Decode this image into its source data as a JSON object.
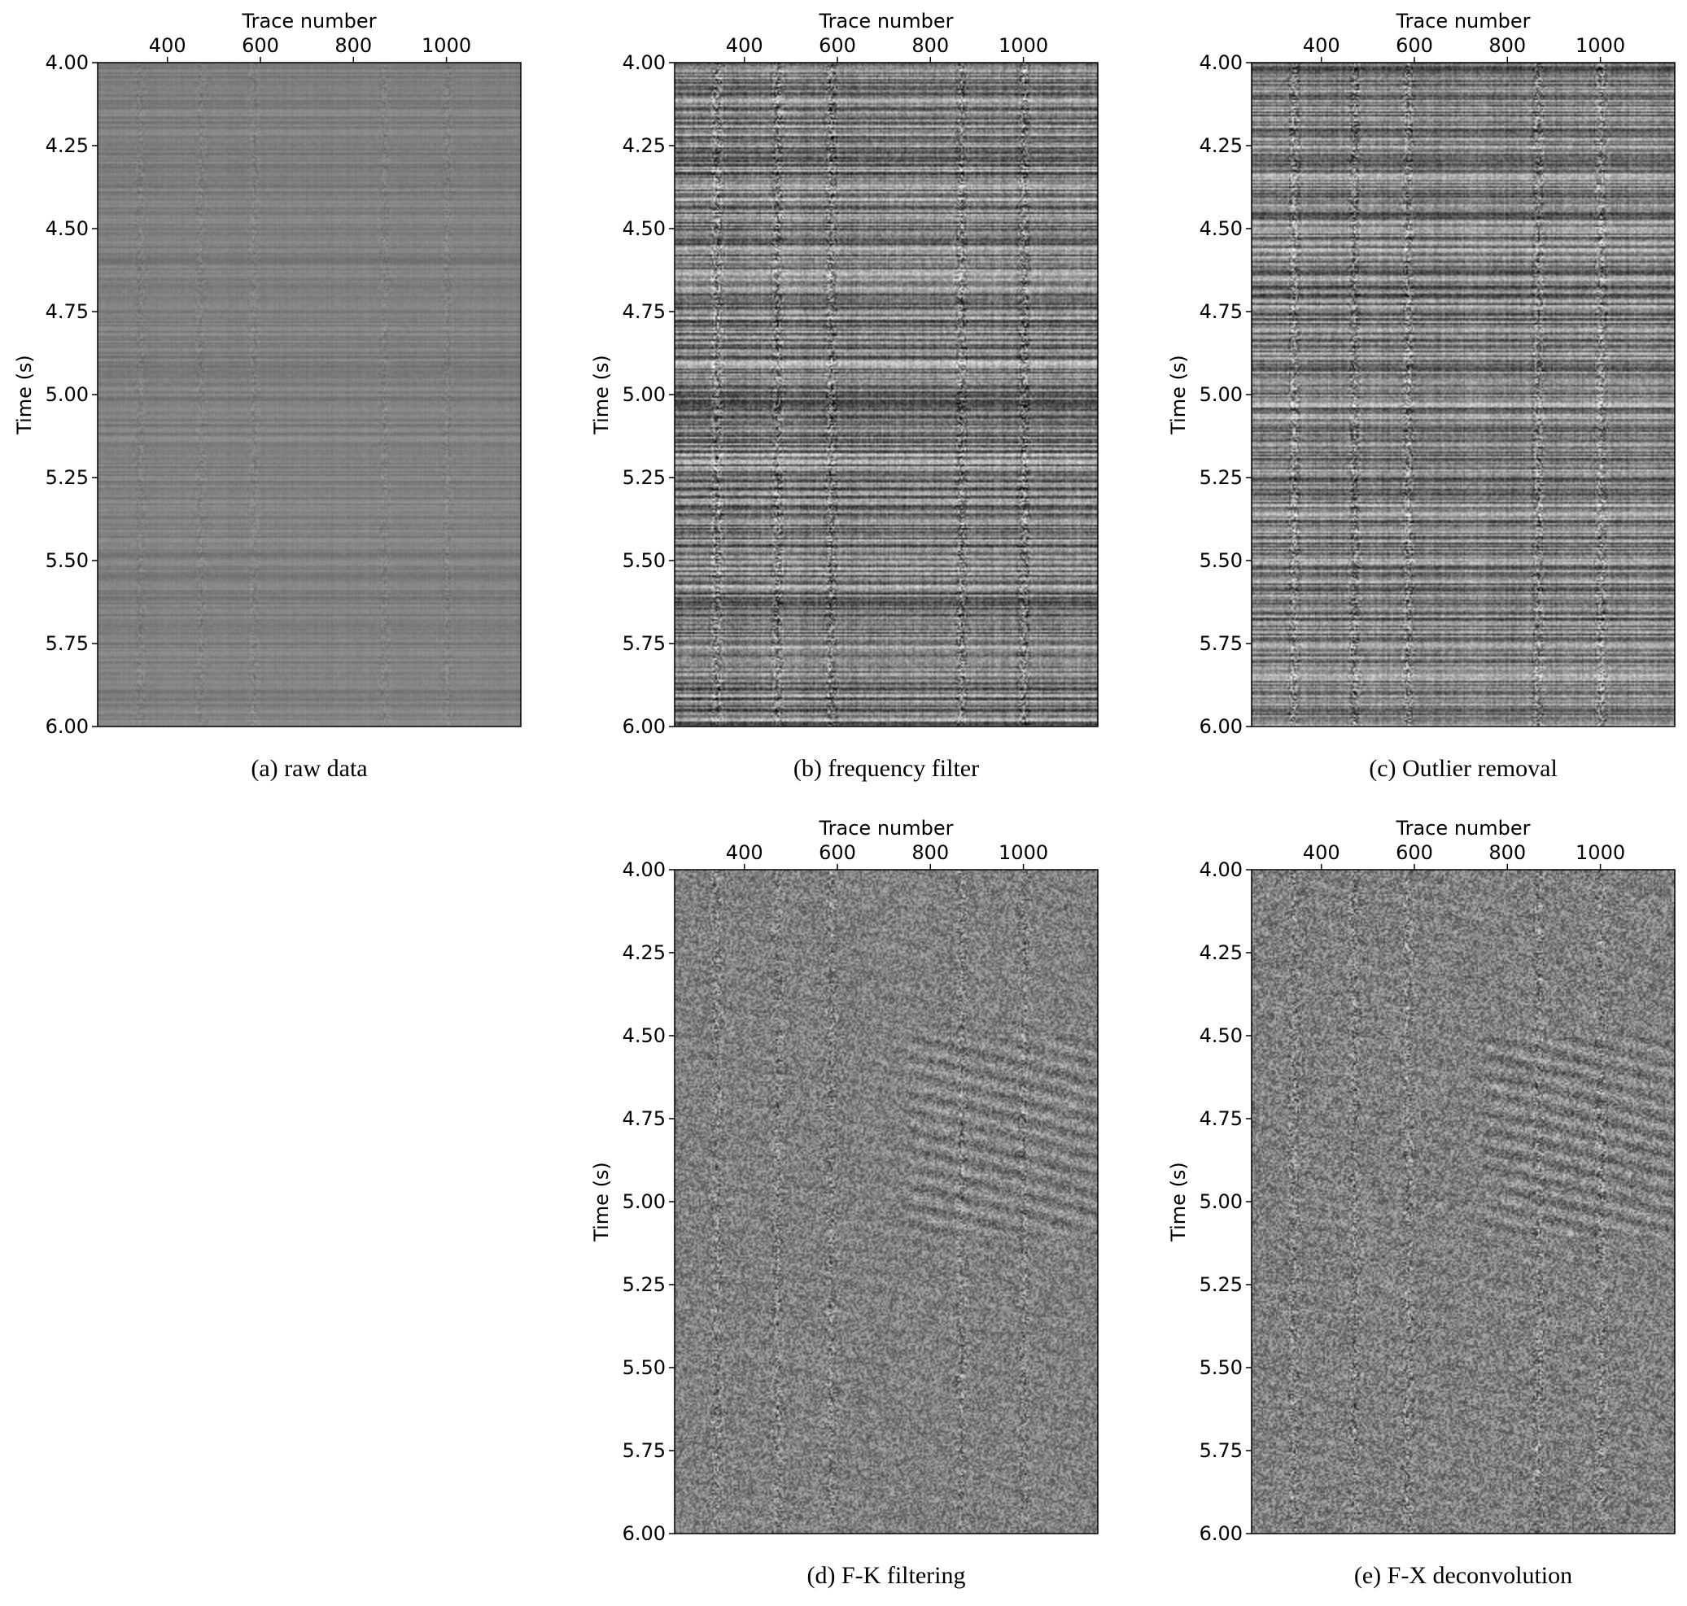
{
  "chart_data": [
    {
      "type": "heatmap",
      "caption": "(a) raw data",
      "xlabel": "Trace number",
      "ylabel": "Time (s)",
      "x_axis_position": "top",
      "xticks": [
        400,
        600,
        800,
        1000
      ],
      "xticklabels": [
        "400",
        "600",
        "800",
        "1000"
      ],
      "xlim": [
        250,
        1160
      ],
      "yticks": [
        4.0,
        4.25,
        4.5,
        4.75,
        5.0,
        5.25,
        5.5,
        5.75,
        6.0
      ],
      "yticklabels": [
        "4.00",
        "4.25",
        "4.50",
        "4.75",
        "5.00",
        "5.25",
        "5.50",
        "5.75",
        "6.00"
      ],
      "ylim": [
        6.0,
        4.0
      ],
      "colormap": "grayscale",
      "pattern": "horizontal",
      "contrast": 0.18,
      "seed": 11
    },
    {
      "type": "heatmap",
      "caption": "(b) frequency filter",
      "xlabel": "Trace number",
      "ylabel": "Time (s)",
      "x_axis_position": "top",
      "xticks": [
        400,
        600,
        800,
        1000
      ],
      "xticklabels": [
        "400",
        "600",
        "800",
        "1000"
      ],
      "xlim": [
        250,
        1160
      ],
      "yticks": [
        4.0,
        4.25,
        4.5,
        4.75,
        5.0,
        5.25,
        5.5,
        5.75,
        6.0
      ],
      "yticklabels": [
        "4.00",
        "4.25",
        "4.50",
        "4.75",
        "5.00",
        "5.25",
        "5.50",
        "5.75",
        "6.00"
      ],
      "ylim": [
        6.0,
        4.0
      ],
      "colormap": "grayscale",
      "pattern": "horizontal",
      "contrast": 0.85,
      "seed": 23
    },
    {
      "type": "heatmap",
      "caption": "(c) Outlier removal",
      "xlabel": "Trace number",
      "ylabel": "Time (s)",
      "x_axis_position": "top",
      "xticks": [
        400,
        600,
        800,
        1000
      ],
      "xticklabels": [
        "400",
        "600",
        "800",
        "1000"
      ],
      "xlim": [
        250,
        1160
      ],
      "yticks": [
        4.0,
        4.25,
        4.5,
        4.75,
        5.0,
        5.25,
        5.5,
        5.75,
        6.0
      ],
      "yticklabels": [
        "4.00",
        "4.25",
        "4.50",
        "4.75",
        "5.00",
        "5.25",
        "5.50",
        "5.75",
        "6.00"
      ],
      "ylim": [
        6.0,
        4.0
      ],
      "colormap": "grayscale",
      "pattern": "horizontal",
      "contrast": 0.8,
      "seed": 37
    },
    {
      "type": "heatmap",
      "caption": "(d) F-K filtering",
      "xlabel": "Trace number",
      "ylabel": "Time (s)",
      "x_axis_position": "top",
      "xticks": [
        400,
        600,
        800,
        1000
      ],
      "xticklabels": [
        "400",
        "600",
        "800",
        "1000"
      ],
      "xlim": [
        250,
        1160
      ],
      "yticks": [
        4.0,
        4.25,
        4.5,
        4.75,
        5.0,
        5.25,
        5.5,
        5.75,
        6.0
      ],
      "yticklabels": [
        "4.00",
        "4.25",
        "4.50",
        "4.75",
        "5.00",
        "5.25",
        "5.50",
        "5.75",
        "6.00"
      ],
      "ylim": [
        6.0,
        4.0
      ],
      "colormap": "grayscale",
      "pattern": "speckle",
      "contrast": 0.55,
      "seed": 51
    },
    {
      "type": "heatmap",
      "caption": "(e) F-X deconvolution",
      "xlabel": "Trace number",
      "ylabel": "Time (s)",
      "x_axis_position": "top",
      "xticks": [
        400,
        600,
        800,
        1000
      ],
      "xticklabels": [
        "400",
        "600",
        "800",
        "1000"
      ],
      "xlim": [
        250,
        1160
      ],
      "yticks": [
        4.0,
        4.25,
        4.5,
        4.75,
        5.0,
        5.25,
        5.5,
        5.75,
        6.0
      ],
      "yticklabels": [
        "4.00",
        "4.25",
        "4.50",
        "4.75",
        "5.00",
        "5.25",
        "5.50",
        "5.75",
        "6.00"
      ],
      "ylim": [
        6.0,
        4.0
      ],
      "colormap": "grayscale",
      "pattern": "speckle",
      "contrast": 0.6,
      "seed": 67
    }
  ]
}
